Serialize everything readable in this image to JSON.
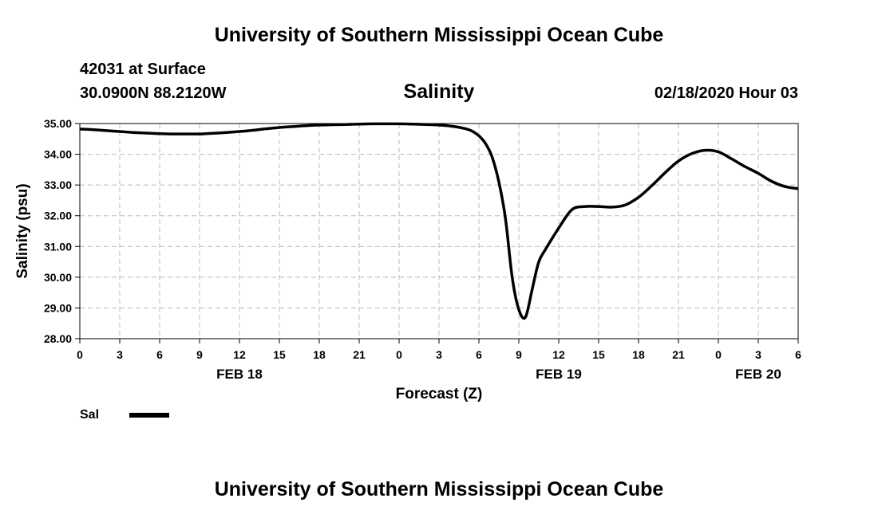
{
  "header": {
    "title": "University of Southern Mississippi Ocean Cube",
    "station": "42031 at Surface",
    "location": "30.0900N 88.2120W",
    "timestamp": "02/18/2020 Hour 03"
  },
  "footer": {
    "title": "University of Southern Mississippi Ocean Cube"
  },
  "chart_data": {
    "type": "line",
    "title": "Salinity",
    "xlabel": "Forecast (Z)",
    "ylabel": "Salinity (psu)",
    "xlim": [
      0,
      54
    ],
    "ylim": [
      28.0,
      35.0
    ],
    "x_ticks": [
      0,
      3,
      6,
      9,
      12,
      15,
      18,
      21,
      24,
      27,
      30,
      33,
      36,
      39,
      42,
      45,
      48,
      51,
      54
    ],
    "x_tick_labels": [
      "0",
      "3",
      "6",
      "9",
      "12",
      "15",
      "18",
      "21",
      "0",
      "3",
      "6",
      "9",
      "12",
      "15",
      "18",
      "21",
      "0",
      "3",
      "6"
    ],
    "y_ticks": [
      28,
      29,
      30,
      31,
      32,
      33,
      34,
      35
    ],
    "y_tick_labels": [
      "28.00",
      "29.00",
      "30.00",
      "31.00",
      "32.00",
      "33.00",
      "34.00",
      "35.00"
    ],
    "date_labels": [
      {
        "x": 12,
        "label": "FEB 18"
      },
      {
        "x": 36,
        "label": "FEB 19"
      },
      {
        "x": 51,
        "label": "FEB 20"
      }
    ],
    "grid": true,
    "legend_position": "bottom-left",
    "series": [
      {
        "name": "Sal",
        "color": "#000000",
        "x": [
          0,
          1,
          2,
          3,
          4,
          5,
          6,
          7,
          8,
          9,
          10,
          11,
          12,
          13,
          14,
          15,
          16,
          17,
          18,
          19,
          20,
          21,
          22,
          23,
          24,
          25,
          26,
          27,
          28,
          29,
          29.5,
          30,
          30.5,
          31,
          31.5,
          32,
          32.5,
          33,
          33.5,
          34,
          34.5,
          35,
          36,
          37,
          38,
          39,
          40,
          41,
          42,
          43,
          44,
          45,
          46,
          47,
          48,
          49,
          50,
          51,
          52,
          53,
          54
        ],
        "values": [
          34.82,
          34.8,
          34.77,
          34.74,
          34.71,
          34.69,
          34.67,
          34.66,
          34.66,
          34.66,
          34.68,
          34.71,
          34.74,
          34.78,
          34.83,
          34.87,
          34.9,
          34.93,
          34.95,
          34.96,
          34.97,
          34.98,
          34.99,
          34.99,
          34.99,
          34.98,
          34.97,
          34.95,
          34.91,
          34.83,
          34.75,
          34.6,
          34.35,
          33.9,
          33.1,
          31.9,
          30.0,
          28.95,
          28.7,
          29.6,
          30.5,
          30.9,
          31.6,
          32.2,
          32.3,
          32.3,
          32.28,
          32.35,
          32.6,
          32.98,
          33.4,
          33.78,
          34.02,
          34.13,
          34.08,
          33.85,
          33.6,
          33.38,
          33.12,
          32.95,
          32.88
        ]
      }
    ]
  }
}
